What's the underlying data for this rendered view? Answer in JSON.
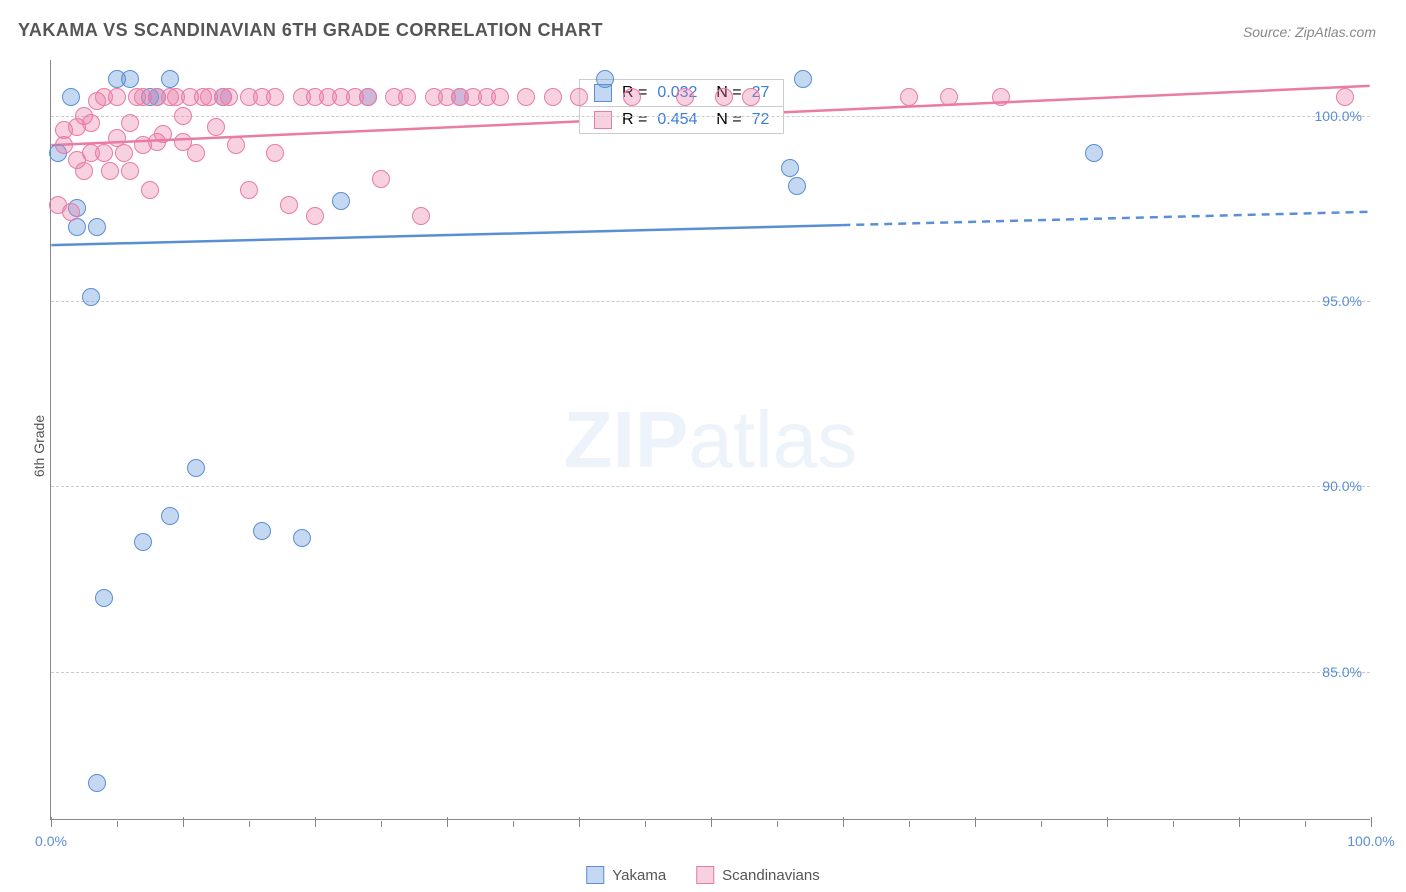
{
  "title": "YAKAMA VS SCANDINAVIAN 6TH GRADE CORRELATION CHART",
  "source": "Source: ZipAtlas.com",
  "ylabel": "6th Grade",
  "watermark_bold": "ZIP",
  "watermark_light": "atlas",
  "chart": {
    "type": "scatter",
    "xlim": [
      0,
      100
    ],
    "ylim": [
      81,
      101.5
    ],
    "x_tick_step": 10,
    "x_tick_minor_step": 5,
    "x_tick_labels": [
      {
        "x": 0,
        "label": "0.0%"
      },
      {
        "x": 100,
        "label": "100.0%"
      }
    ],
    "y_ticks": [
      85,
      90,
      95,
      100
    ],
    "y_tick_labels": [
      "85.0%",
      "90.0%",
      "95.0%",
      "100.0%"
    ],
    "background_color": "#ffffff",
    "grid_color": "#cccccc",
    "axis_color": "#888888",
    "label_color": "#5a8fd6",
    "marker_radius": 9,
    "marker_opacity": 0.45,
    "series": [
      {
        "name": "Yakama",
        "color": "#5a8fd6",
        "fill": "rgba(90,143,214,0.35)",
        "stroke": "#5a8fd6",
        "R": 0.032,
        "N": 27,
        "trend": {
          "y_at_x0": 96.5,
          "y_at_x100": 97.4,
          "solid_until_x": 60
        },
        "points": [
          [
            0.5,
            99.0
          ],
          [
            1.5,
            100.5
          ],
          [
            2,
            97.5
          ],
          [
            2,
            97.0
          ],
          [
            3,
            95.1
          ],
          [
            3.5,
            82.0
          ],
          [
            3.5,
            97.0
          ],
          [
            4,
            87.0
          ],
          [
            5,
            101.0
          ],
          [
            6,
            101.0
          ],
          [
            7,
            88.5
          ],
          [
            7.5,
            100.5
          ],
          [
            8,
            100.5
          ],
          [
            9,
            89.2
          ],
          [
            9,
            101.0
          ],
          [
            11,
            90.5
          ],
          [
            13,
            100.5
          ],
          [
            16,
            88.8
          ],
          [
            19,
            88.6
          ],
          [
            22,
            97.7
          ],
          [
            24,
            100.5
          ],
          [
            31,
            100.5
          ],
          [
            42,
            101.0
          ],
          [
            56,
            98.6
          ],
          [
            56.5,
            98.1
          ],
          [
            57,
            101.0
          ],
          [
            79,
            99.0
          ]
        ]
      },
      {
        "name": "Scandinavians",
        "color": "#e97ba5",
        "fill": "rgba(233,123,165,0.35)",
        "stroke": "#e97ba5",
        "R": 0.454,
        "N": 72,
        "trend": {
          "y_at_x0": 99.2,
          "y_at_x100": 100.8,
          "solid_until_x": 100
        },
        "points": [
          [
            0.5,
            97.6
          ],
          [
            1,
            99.6
          ],
          [
            1,
            99.2
          ],
          [
            1.5,
            97.4
          ],
          [
            2,
            99.7
          ],
          [
            2,
            98.8
          ],
          [
            2.5,
            100.0
          ],
          [
            2.5,
            98.5
          ],
          [
            3,
            99.8
          ],
          [
            3,
            99.0
          ],
          [
            3.5,
            100.4
          ],
          [
            4,
            100.5
          ],
          [
            4,
            99.0
          ],
          [
            4.5,
            98.5
          ],
          [
            5,
            100.5
          ],
          [
            5,
            99.4
          ],
          [
            5.5,
            99.0
          ],
          [
            6,
            99.8
          ],
          [
            6,
            98.5
          ],
          [
            6.5,
            100.5
          ],
          [
            7,
            99.2
          ],
          [
            7,
            100.5
          ],
          [
            7.5,
            98.0
          ],
          [
            8,
            100.5
          ],
          [
            8,
            99.3
          ],
          [
            8.5,
            99.5
          ],
          [
            9,
            100.5
          ],
          [
            9.5,
            100.5
          ],
          [
            10,
            99.3
          ],
          [
            10,
            100.0
          ],
          [
            10.5,
            100.5
          ],
          [
            11,
            99.0
          ],
          [
            11.5,
            100.5
          ],
          [
            12,
            100.5
          ],
          [
            12.5,
            99.7
          ],
          [
            13,
            100.5
          ],
          [
            13.5,
            100.5
          ],
          [
            14,
            99.2
          ],
          [
            15,
            100.5
          ],
          [
            15,
            98.0
          ],
          [
            16,
            100.5
          ],
          [
            17,
            100.5
          ],
          [
            17,
            99.0
          ],
          [
            18,
            97.6
          ],
          [
            19,
            100.5
          ],
          [
            20,
            100.5
          ],
          [
            20,
            97.3
          ],
          [
            21,
            100.5
          ],
          [
            22,
            100.5
          ],
          [
            23,
            100.5
          ],
          [
            24,
            100.5
          ],
          [
            25,
            98.3
          ],
          [
            26,
            100.5
          ],
          [
            27,
            100.5
          ],
          [
            28,
            97.3
          ],
          [
            29,
            100.5
          ],
          [
            30,
            100.5
          ],
          [
            31,
            100.5
          ],
          [
            32,
            100.5
          ],
          [
            33,
            100.5
          ],
          [
            34,
            100.5
          ],
          [
            36,
            100.5
          ],
          [
            38,
            100.5
          ],
          [
            40,
            100.5
          ],
          [
            44,
            100.5
          ],
          [
            48,
            100.5
          ],
          [
            51,
            100.5
          ],
          [
            53,
            100.5
          ],
          [
            65,
            100.5
          ],
          [
            68,
            100.5
          ],
          [
            72,
            100.5
          ],
          [
            98,
            100.5
          ]
        ]
      }
    ]
  },
  "statsbox": {
    "left_pct": 40,
    "top_y": 101.0
  },
  "legend": [
    {
      "swatch_fill": "rgba(90,143,214,0.35)",
      "swatch_stroke": "#5a8fd6",
      "label": "Yakama"
    },
    {
      "swatch_fill": "rgba(233,123,165,0.35)",
      "swatch_stroke": "#e97ba5",
      "label": "Scandinavians"
    }
  ]
}
